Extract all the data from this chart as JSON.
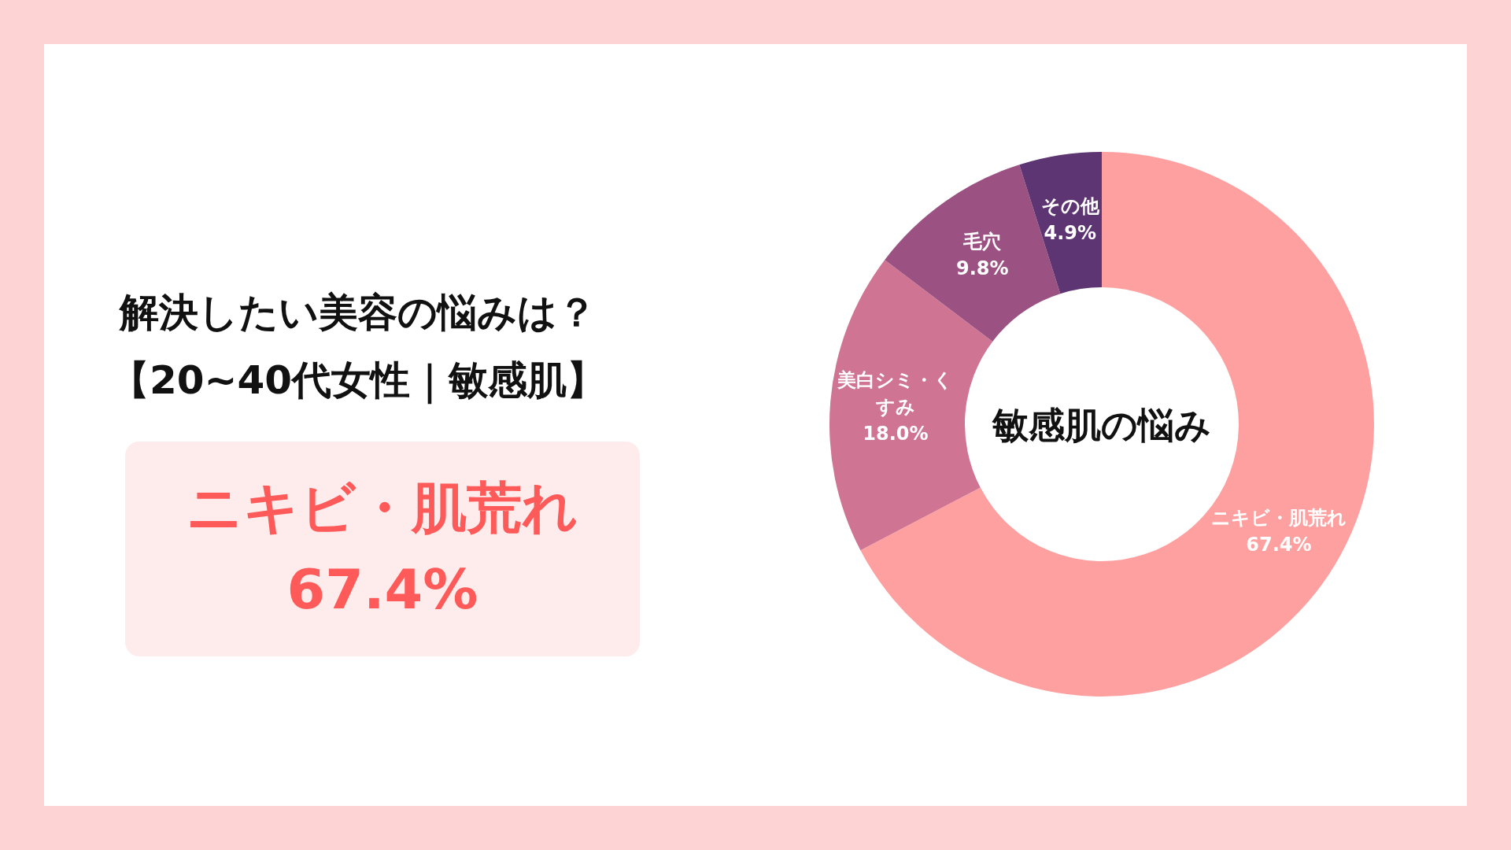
{
  "chart_data": {
    "type": "donut",
    "title": "解決したい美容の悩みは？",
    "subtitle": "【20~40代女性｜敏感肌】",
    "categories": [
      "ニキビ・肌荒れ",
      "美白シミ・くすみ",
      "毛穴",
      "その他"
    ],
    "values": [
      67.4,
      18.0,
      9.8,
      4.9
    ],
    "value_labels": [
      "67.4%",
      "18.0%",
      "9.8%",
      "4.9%"
    ],
    "colors": [
      "#ffa0a0",
      "#d07494",
      "#9b5283",
      "#5e3573"
    ],
    "annotations": [
      "ニキビ・肌荒れ\n67.4%",
      "敏感肌の悩み"
    ],
    "legend": false
  }
}
